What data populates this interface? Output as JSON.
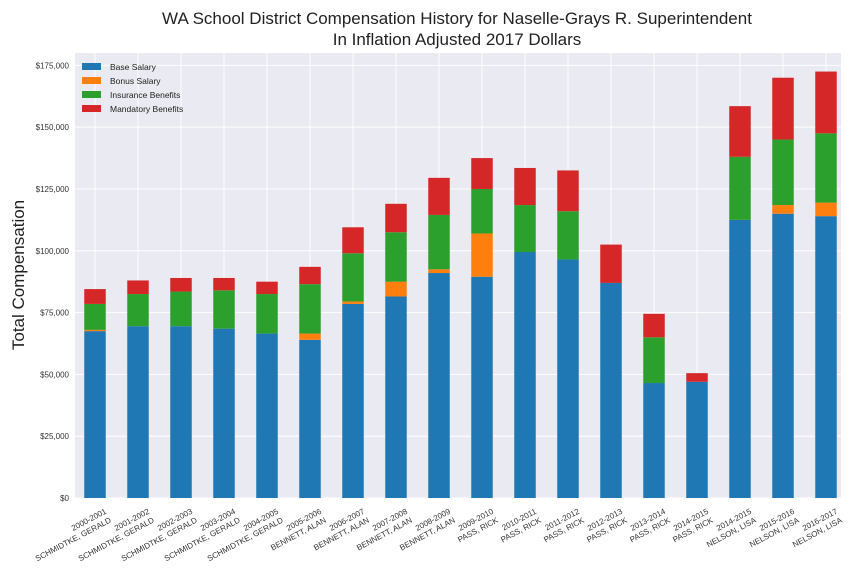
{
  "chart_data": {
    "type": "bar",
    "stacked": true,
    "title": [
      "WA School District Compensation History for Naselle-Grays R. Superintendent",
      "In Inflation Adjusted 2017 Dollars"
    ],
    "xlabel": "",
    "ylabel": "Total Compensation",
    "ylim": [
      0,
      180000
    ],
    "yticks": [
      0,
      25000,
      50000,
      75000,
      100000,
      125000,
      150000,
      175000
    ],
    "ytick_labels": [
      "$0",
      "$25,000",
      "$50,000",
      "$75,000",
      "$100,000",
      "$125,000",
      "$150,000",
      "$175,000"
    ],
    "grid": true,
    "legend_position": "top-left",
    "categories": [
      [
        "2000-2001",
        "SCHMIDTKE, GERALD"
      ],
      [
        "2001-2002",
        "SCHMIDTKE, GERALD"
      ],
      [
        "2002-2003",
        "SCHMIDTKE, GERALD"
      ],
      [
        "2003-2004",
        "SCHMIDTKE, GERALD"
      ],
      [
        "2004-2005",
        "SCHMIDTKE, GERALD"
      ],
      [
        "2005-2006",
        "BENNETT, ALAN"
      ],
      [
        "2006-2007",
        "BENNETT, ALAN"
      ],
      [
        "2007-2008",
        "BENNETT, ALAN"
      ],
      [
        "2008-2009",
        "BENNETT, ALAN"
      ],
      [
        "2009-2010",
        "PASS, RICK"
      ],
      [
        "2010-2011",
        "PASS, RICK"
      ],
      [
        "2011-2012",
        "PASS, RICK"
      ],
      [
        "2012-2013",
        "PASS, RICK"
      ],
      [
        "2013-2014",
        "PASS, RICK"
      ],
      [
        "2014-2015",
        "PASS, RICK"
      ],
      [
        "2014-2015",
        "NELSON, LISA"
      ],
      [
        "2015-2016",
        "NELSON, LISA"
      ],
      [
        "2016-2017",
        "NELSON, LISA"
      ]
    ],
    "series": [
      {
        "name": "Base Salary",
        "color": "#1f77b4",
        "values": [
          67500,
          69500,
          69500,
          68500,
          66500,
          64000,
          78500,
          81500,
          91000,
          89500,
          99500,
          96500,
          87000,
          46500,
          47000,
          112500,
          115000,
          114000
        ]
      },
      {
        "name": "Bonus Salary",
        "color": "#ff7f0e",
        "values": [
          500,
          0,
          0,
          0,
          0,
          2500,
          1000,
          6000,
          1500,
          17500,
          0,
          0,
          0,
          0,
          0,
          0,
          3500,
          5500
        ]
      },
      {
        "name": "Insurance Benefits",
        "color": "#2ca02c",
        "values": [
          10500,
          13000,
          14000,
          15500,
          16000,
          20000,
          19500,
          20000,
          22000,
          18000,
          19000,
          19500,
          0,
          18500,
          0,
          25500,
          26500,
          28000
        ]
      },
      {
        "name": "Mandatory Benefits",
        "color": "#d62728",
        "values": [
          6000,
          5500,
          5500,
          5000,
          5000,
          7000,
          10500,
          11500,
          15000,
          12500,
          15000,
          16500,
          15500,
          9500,
          3500,
          20500,
          25000,
          25000
        ]
      }
    ]
  }
}
